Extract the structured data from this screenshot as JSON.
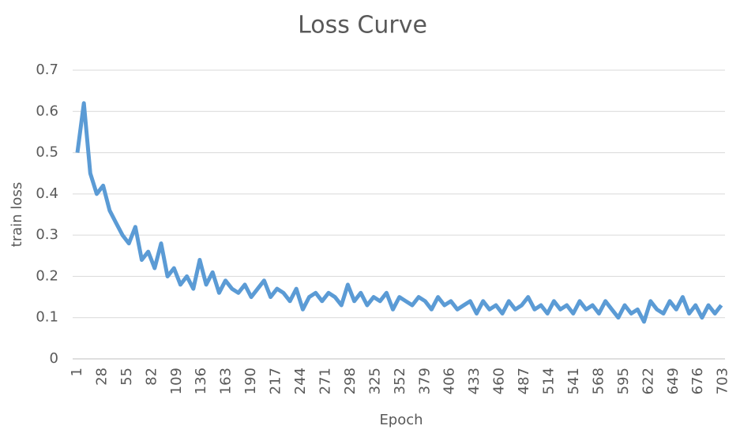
{
  "chart_data": {
    "type": "line",
    "title": "Loss Curve",
    "x_label": "Epoch",
    "y_label": "train loss",
    "x": [
      1,
      8,
      15,
      22,
      29,
      36,
      43,
      50,
      57,
      64,
      71,
      78,
      85,
      92,
      99,
      106,
      113,
      120,
      127,
      134,
      141,
      148,
      155,
      162,
      169,
      176,
      183,
      190,
      197,
      204,
      211,
      218,
      225,
      232,
      239,
      246,
      253,
      260,
      267,
      274,
      281,
      288,
      295,
      302,
      309,
      316,
      323,
      330,
      337,
      344,
      351,
      358,
      365,
      372,
      379,
      386,
      393,
      400,
      407,
      414,
      421,
      428,
      435,
      442,
      449,
      456,
      463,
      470,
      477,
      484,
      491,
      498,
      505,
      512,
      519,
      526,
      533,
      540,
      547,
      554,
      561,
      568,
      575,
      582,
      589,
      596,
      603,
      610,
      617,
      624,
      631,
      638,
      645,
      652,
      659,
      666,
      673,
      680,
      687,
      694,
      701
    ],
    "series": [
      {
        "name": "train loss",
        "color": "#5b9bd5",
        "values": [
          0.5,
          0.62,
          0.45,
          0.4,
          0.42,
          0.36,
          0.33,
          0.3,
          0.28,
          0.32,
          0.24,
          0.26,
          0.22,
          0.28,
          0.2,
          0.22,
          0.18,
          0.2,
          0.17,
          0.24,
          0.18,
          0.21,
          0.16,
          0.19,
          0.17,
          0.16,
          0.18,
          0.15,
          0.17,
          0.19,
          0.15,
          0.17,
          0.16,
          0.14,
          0.17,
          0.12,
          0.15,
          0.16,
          0.14,
          0.16,
          0.15,
          0.13,
          0.18,
          0.14,
          0.16,
          0.13,
          0.15,
          0.14,
          0.16,
          0.12,
          0.15,
          0.14,
          0.13,
          0.15,
          0.14,
          0.12,
          0.15,
          0.13,
          0.14,
          0.12,
          0.13,
          0.14,
          0.11,
          0.14,
          0.12,
          0.13,
          0.11,
          0.14,
          0.12,
          0.13,
          0.15,
          0.12,
          0.13,
          0.11,
          0.14,
          0.12,
          0.13,
          0.11,
          0.14,
          0.12,
          0.13,
          0.11,
          0.14,
          0.12,
          0.1,
          0.13,
          0.11,
          0.12,
          0.09,
          0.14,
          0.12,
          0.11,
          0.14,
          0.12,
          0.15,
          0.11,
          0.13,
          0.1,
          0.13,
          0.11,
          0.13
        ]
      }
    ],
    "xlim": [
      1,
      705
    ],
    "xticks": [
      1,
      28,
      55,
      82,
      109,
      136,
      163,
      190,
      217,
      244,
      271,
      298,
      325,
      352,
      379,
      406,
      433,
      460,
      487,
      514,
      541,
      568,
      595,
      622,
      649,
      676,
      703
    ],
    "ylim": [
      0,
      0.7
    ],
    "yticks": [
      0,
      0.1,
      0.2,
      0.3,
      0.4,
      0.5,
      0.6,
      0.7
    ],
    "grid": true
  }
}
